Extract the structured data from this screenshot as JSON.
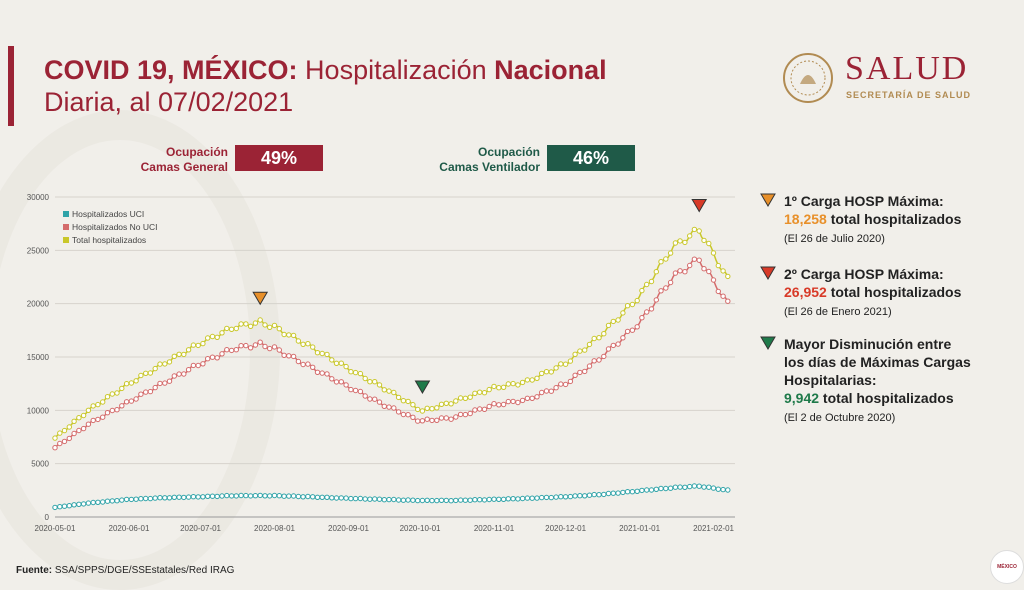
{
  "header": {
    "title_bold1": "COVID 19, MÉXICO:",
    "title_regular": " Hospitalización ",
    "title_bold2": "Nacional",
    "title_line2": "Diaria, al 07/02/2021"
  },
  "logo": {
    "name": "SALUD",
    "subtitle": "SECRETARÍA DE SALUD"
  },
  "occupancy": {
    "general": {
      "label_line1": "Ocupación",
      "label_line2": "Camas General",
      "value": "49%",
      "color": "#9b2335"
    },
    "ventilator": {
      "label_line1": "Ocupación",
      "label_line2": "Camas Ventilador",
      "value": "46%",
      "color": "#1f5a48"
    }
  },
  "annotations": [
    {
      "title": "1º Carga HOSP Máxima:",
      "value": "18,258",
      "value_suffix": " total hospitalizados",
      "date": "(El 26 de Julio 2020)",
      "color": "#e8902a"
    },
    {
      "title": "2º Carga HOSP Máxima:",
      "value": "26,952",
      "value_suffix": " total hospitalizados",
      "date": "(El 26 de Enero 2021)",
      "color": "#d83a28"
    },
    {
      "title_line1": "Mayor Disminución entre",
      "title_line2": "los días de Máximas Cargas",
      "title_line3": "Hospitalarias:",
      "value": "9,942",
      "value_suffix": " total hospitalizados",
      "date": "(El 2 de Octubre 2020)",
      "color": "#1f7a4a"
    }
  ],
  "footer": {
    "label": "Fuente:",
    "text": " SSA/SPPS/DGE/SSEstatales/Red IRAG"
  },
  "watermark": "MÉXICO",
  "chart_data": {
    "type": "line",
    "x_tick_labels": [
      "2020-05-01",
      "2020-06-01",
      "2020-07-01",
      "2020-08-01",
      "2020-09-01",
      "2020-10-01",
      "2020-11-01",
      "2020-12-01",
      "2021-01-01",
      "2021-02-01"
    ],
    "y_tick_labels": [
      "0",
      "5000",
      "10000",
      "15000",
      "20000",
      "25000",
      "30000"
    ],
    "ylim": [
      0,
      30000
    ],
    "legend_position": "top-left",
    "series": [
      {
        "name": "Hospitalizados UCI",
        "color": "#2fa3a8",
        "points": [
          [
            "2020-05-01",
            900
          ],
          [
            "2020-05-15",
            1300
          ],
          [
            "2020-06-01",
            1650
          ],
          [
            "2020-06-15",
            1800
          ],
          [
            "2020-07-01",
            1900
          ],
          [
            "2020-07-15",
            2000
          ],
          [
            "2020-08-01",
            2000
          ],
          [
            "2020-08-15",
            1900
          ],
          [
            "2020-09-01",
            1750
          ],
          [
            "2020-09-15",
            1650
          ],
          [
            "2020-10-01",
            1550
          ],
          [
            "2020-10-15",
            1550
          ],
          [
            "2020-11-01",
            1650
          ],
          [
            "2020-11-15",
            1750
          ],
          [
            "2020-12-01",
            1900
          ],
          [
            "2020-12-15",
            2100
          ],
          [
            "2021-01-01",
            2450
          ],
          [
            "2021-01-15",
            2750
          ],
          [
            "2021-01-26",
            2900
          ],
          [
            "2021-02-07",
            2500
          ]
        ]
      },
      {
        "name": "Hospitalizados No UCI",
        "color": "#d46b6b",
        "points": [
          [
            "2020-05-01",
            6500
          ],
          [
            "2020-05-15",
            8700
          ],
          [
            "2020-06-01",
            10800
          ],
          [
            "2020-06-15",
            12500
          ],
          [
            "2020-07-01",
            14400
          ],
          [
            "2020-07-15",
            15800
          ],
          [
            "2020-07-26",
            16200
          ],
          [
            "2020-08-01",
            15800
          ],
          [
            "2020-08-15",
            14200
          ],
          [
            "2020-09-01",
            12200
          ],
          [
            "2020-09-15",
            10600
          ],
          [
            "2020-10-01",
            9000
          ],
          [
            "2020-10-15",
            9300
          ],
          [
            "2020-11-01",
            10500
          ],
          [
            "2020-11-15",
            11000
          ],
          [
            "2020-12-01",
            12500
          ],
          [
            "2020-12-15",
            14800
          ],
          [
            "2021-01-01",
            18200
          ],
          [
            "2021-01-15",
            22500
          ],
          [
            "2021-01-26",
            24200
          ],
          [
            "2021-02-07",
            20000
          ]
        ]
      },
      {
        "name": "Total hospitalizados",
        "color": "#c9c72a",
        "points": [
          [
            "2020-05-01",
            7400
          ],
          [
            "2020-05-15",
            10000
          ],
          [
            "2020-06-01",
            12500
          ],
          [
            "2020-06-15",
            14300
          ],
          [
            "2020-07-01",
            16300
          ],
          [
            "2020-07-15",
            17800
          ],
          [
            "2020-07-26",
            18258
          ],
          [
            "2020-08-01",
            17800
          ],
          [
            "2020-08-15",
            16100
          ],
          [
            "2020-09-01",
            13900
          ],
          [
            "2020-09-15",
            12200
          ],
          [
            "2020-10-02",
            9942
          ],
          [
            "2020-10-15",
            10800
          ],
          [
            "2020-11-01",
            12100
          ],
          [
            "2020-11-15",
            12700
          ],
          [
            "2020-12-01",
            14400
          ],
          [
            "2020-12-15",
            16900
          ],
          [
            "2021-01-01",
            20700
          ],
          [
            "2021-01-15",
            25300
          ],
          [
            "2021-01-26",
            26952
          ],
          [
            "2021-02-07",
            22300
          ]
        ]
      }
    ],
    "markers": [
      {
        "date": "2020-07-26",
        "value": 18258,
        "color": "#e8902a"
      },
      {
        "date": "2021-01-26",
        "value": 26952,
        "color": "#d83a28"
      },
      {
        "date": "2020-10-02",
        "value": 9942,
        "color": "#1f7a4a"
      }
    ]
  }
}
